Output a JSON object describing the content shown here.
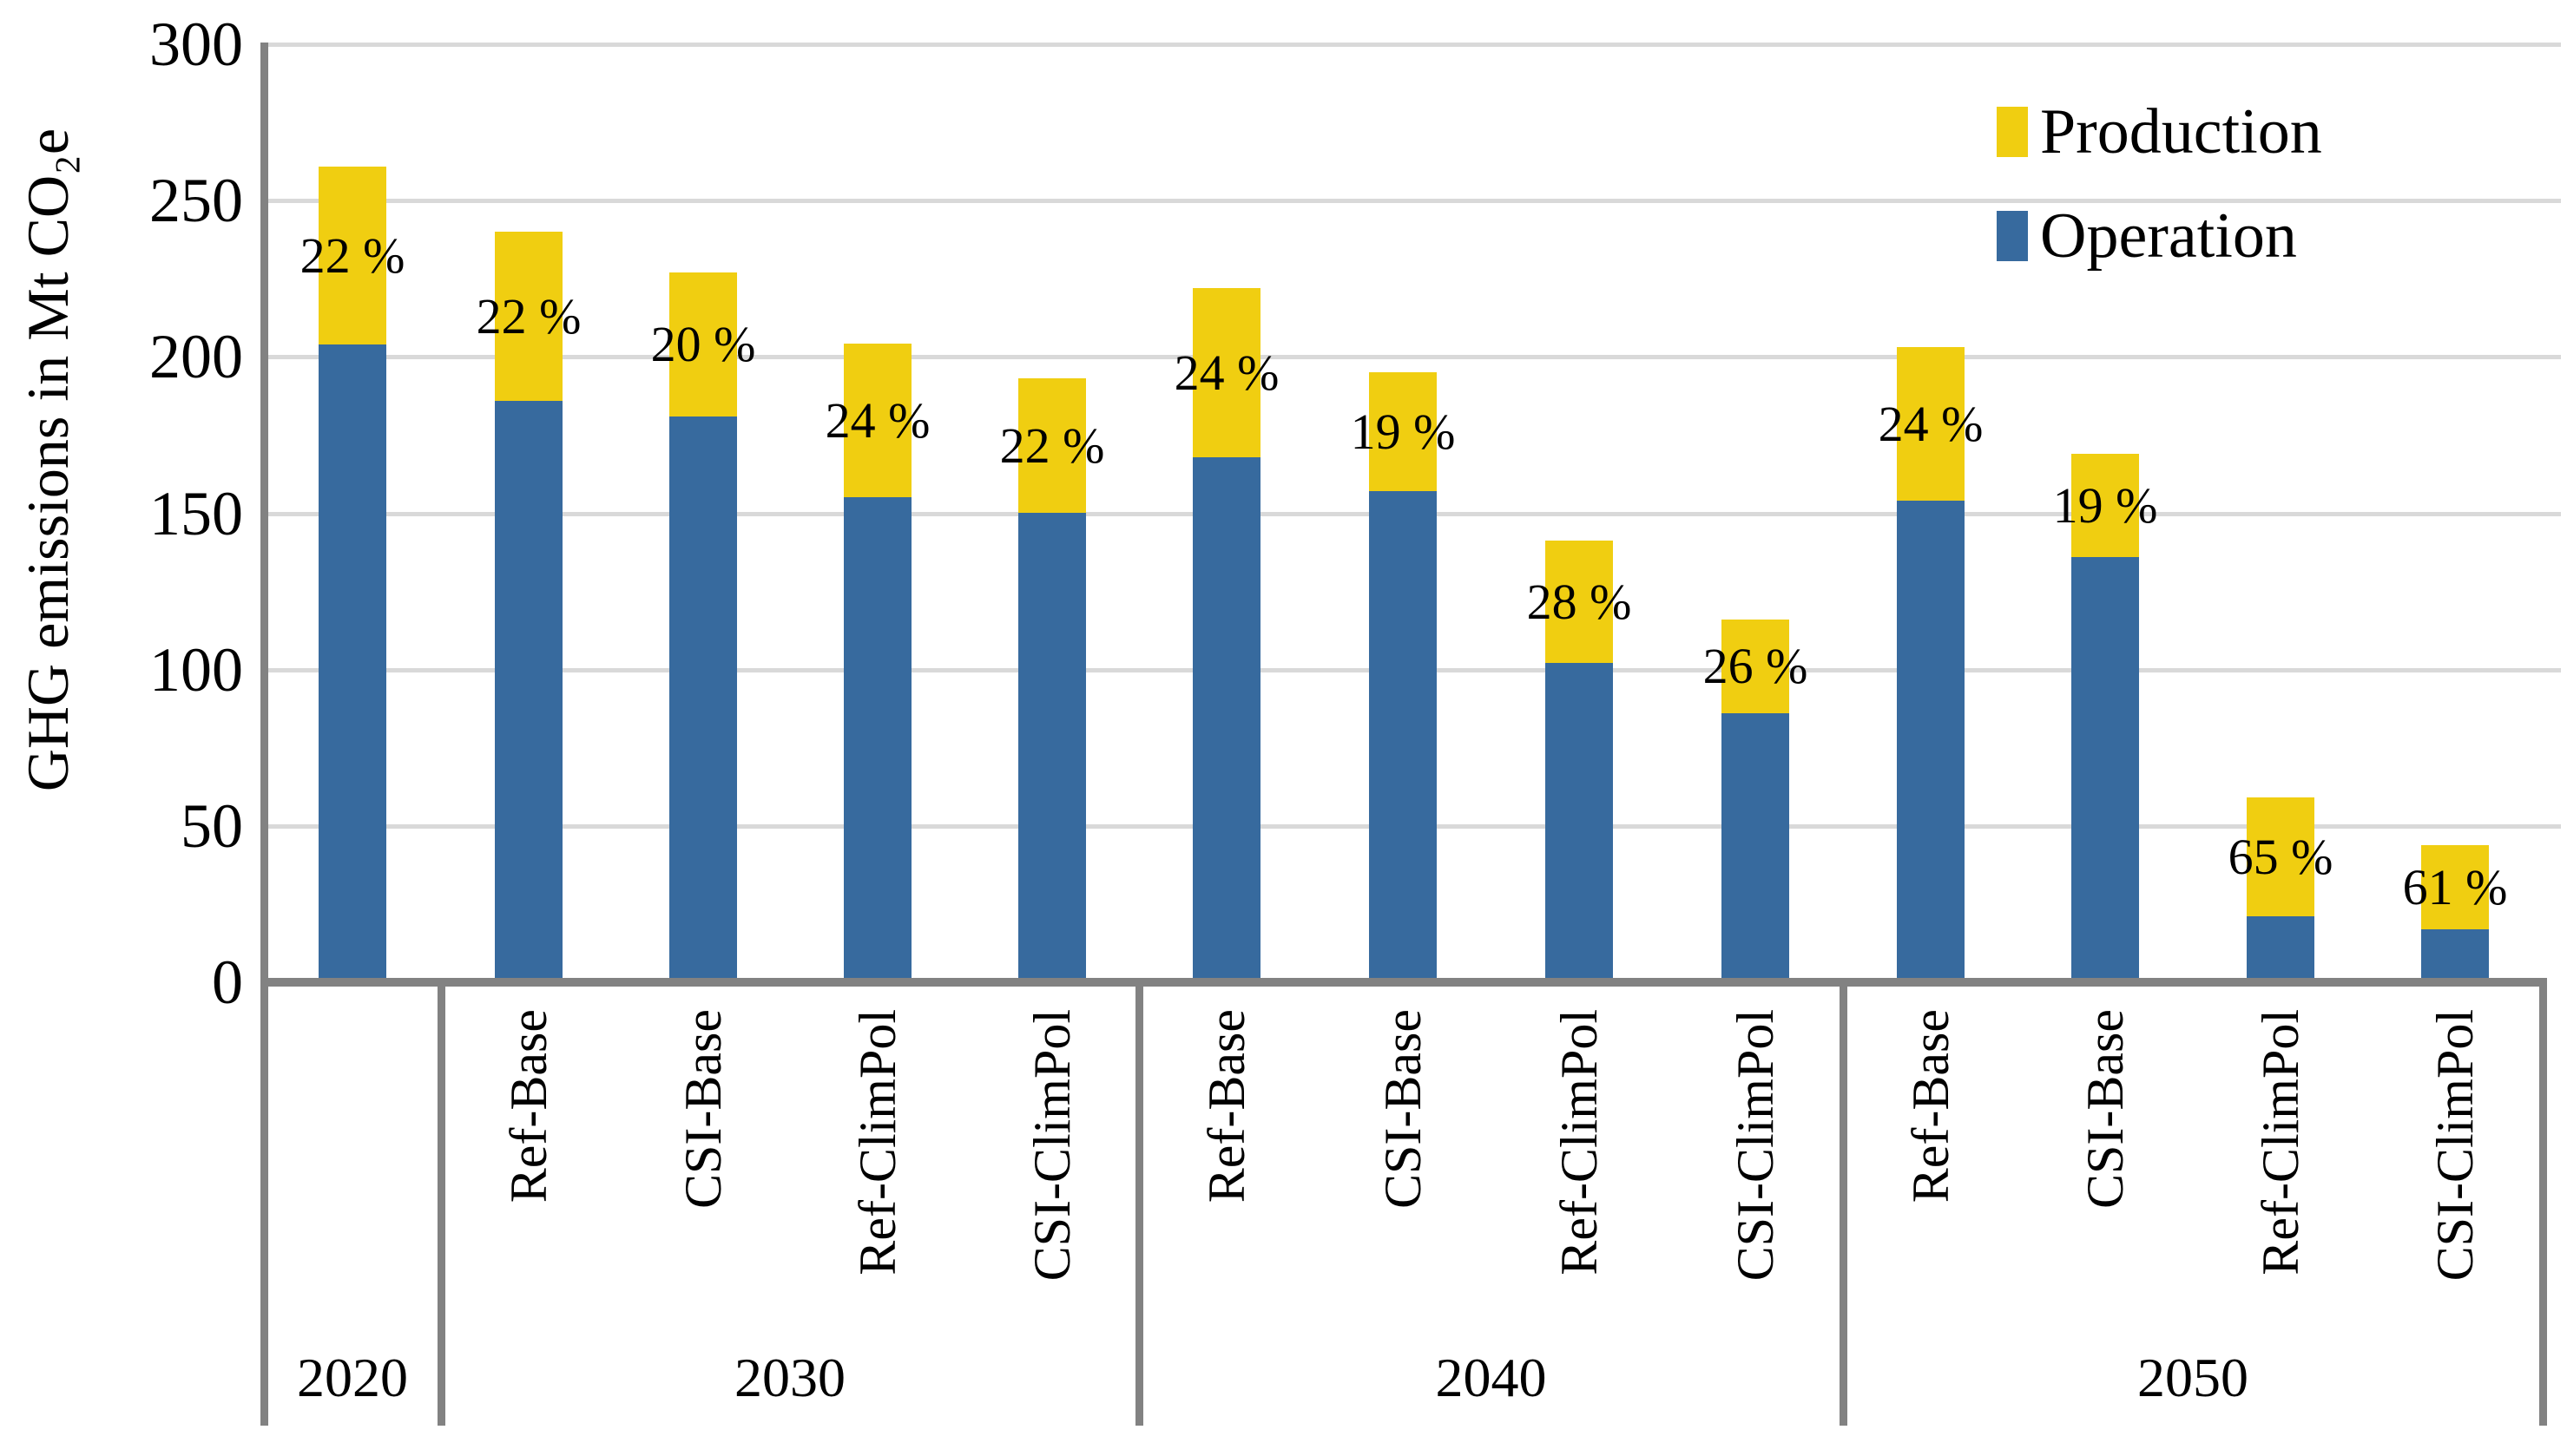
{
  "chart_data": {
    "type": "bar",
    "stacked": true,
    "title": "",
    "ylabel": "GHG emissions in Mt CO₂e",
    "xlabel": "",
    "ylim": [
      0,
      300
    ],
    "yticks": [
      0,
      50,
      100,
      150,
      200,
      250,
      300
    ],
    "grid": "horizontal-only",
    "legend_position": "top-right",
    "legend": {
      "entries": [
        {
          "label": "Production",
          "color": "#f0ce11"
        },
        {
          "label": "Operation",
          "color": "#376a9e"
        }
      ]
    },
    "series_unit": "Mt CO2e",
    "groups": [
      {
        "year": "2020",
        "bars": [
          {
            "scenario": "",
            "operation": 204,
            "production": 57,
            "total": 261,
            "production_share_label": "22 %"
          }
        ]
      },
      {
        "year": "2030",
        "bars": [
          {
            "scenario": "Ref-Base",
            "operation": 186,
            "production": 54,
            "total": 240,
            "production_share_label": "22 %"
          },
          {
            "scenario": "CSI-Base",
            "operation": 181,
            "production": 46,
            "total": 227,
            "production_share_label": "20 %"
          },
          {
            "scenario": "Ref-ClimPol",
            "operation": 155,
            "production": 49,
            "total": 204,
            "production_share_label": "24 %"
          },
          {
            "scenario": "CSI-ClimPol",
            "operation": 150,
            "production": 43,
            "total": 193,
            "production_share_label": "22 %"
          }
        ]
      },
      {
        "year": "2040",
        "bars": [
          {
            "scenario": "Ref-Base",
            "operation": 168,
            "production": 54,
            "total": 222,
            "production_share_label": "24 %"
          },
          {
            "scenario": "CSI-Base",
            "operation": 157,
            "production": 38,
            "total": 195,
            "production_share_label": "19 %"
          },
          {
            "scenario": "Ref-ClimPol",
            "operation": 102,
            "production": 39,
            "total": 141,
            "production_share_label": "28 %"
          },
          {
            "scenario": "CSI-ClimPol",
            "operation": 86,
            "production": 30,
            "total": 116,
            "production_share_label": "26 %"
          }
        ]
      },
      {
        "year": "2050",
        "bars": [
          {
            "scenario": "Ref-Base",
            "operation": 154,
            "production": 49,
            "total": 203,
            "production_share_label": "24 %"
          },
          {
            "scenario": "CSI-Base",
            "operation": 136,
            "production": 33,
            "total": 169,
            "production_share_label": "19 %"
          },
          {
            "scenario": "Ref-ClimPol",
            "operation": 21,
            "production": 38,
            "total": 59,
            "production_share_label": "65 %"
          },
          {
            "scenario": "CSI-ClimPol",
            "operation": 17,
            "production": 27,
            "total": 44,
            "production_share_label": "61 %"
          }
        ]
      }
    ],
    "colors": {
      "production": "#f0ce11",
      "operation": "#376a9e",
      "axis": "#828282",
      "gridline": "#d9d9d9",
      "text": "#000000",
      "background": "#ffffff"
    }
  }
}
